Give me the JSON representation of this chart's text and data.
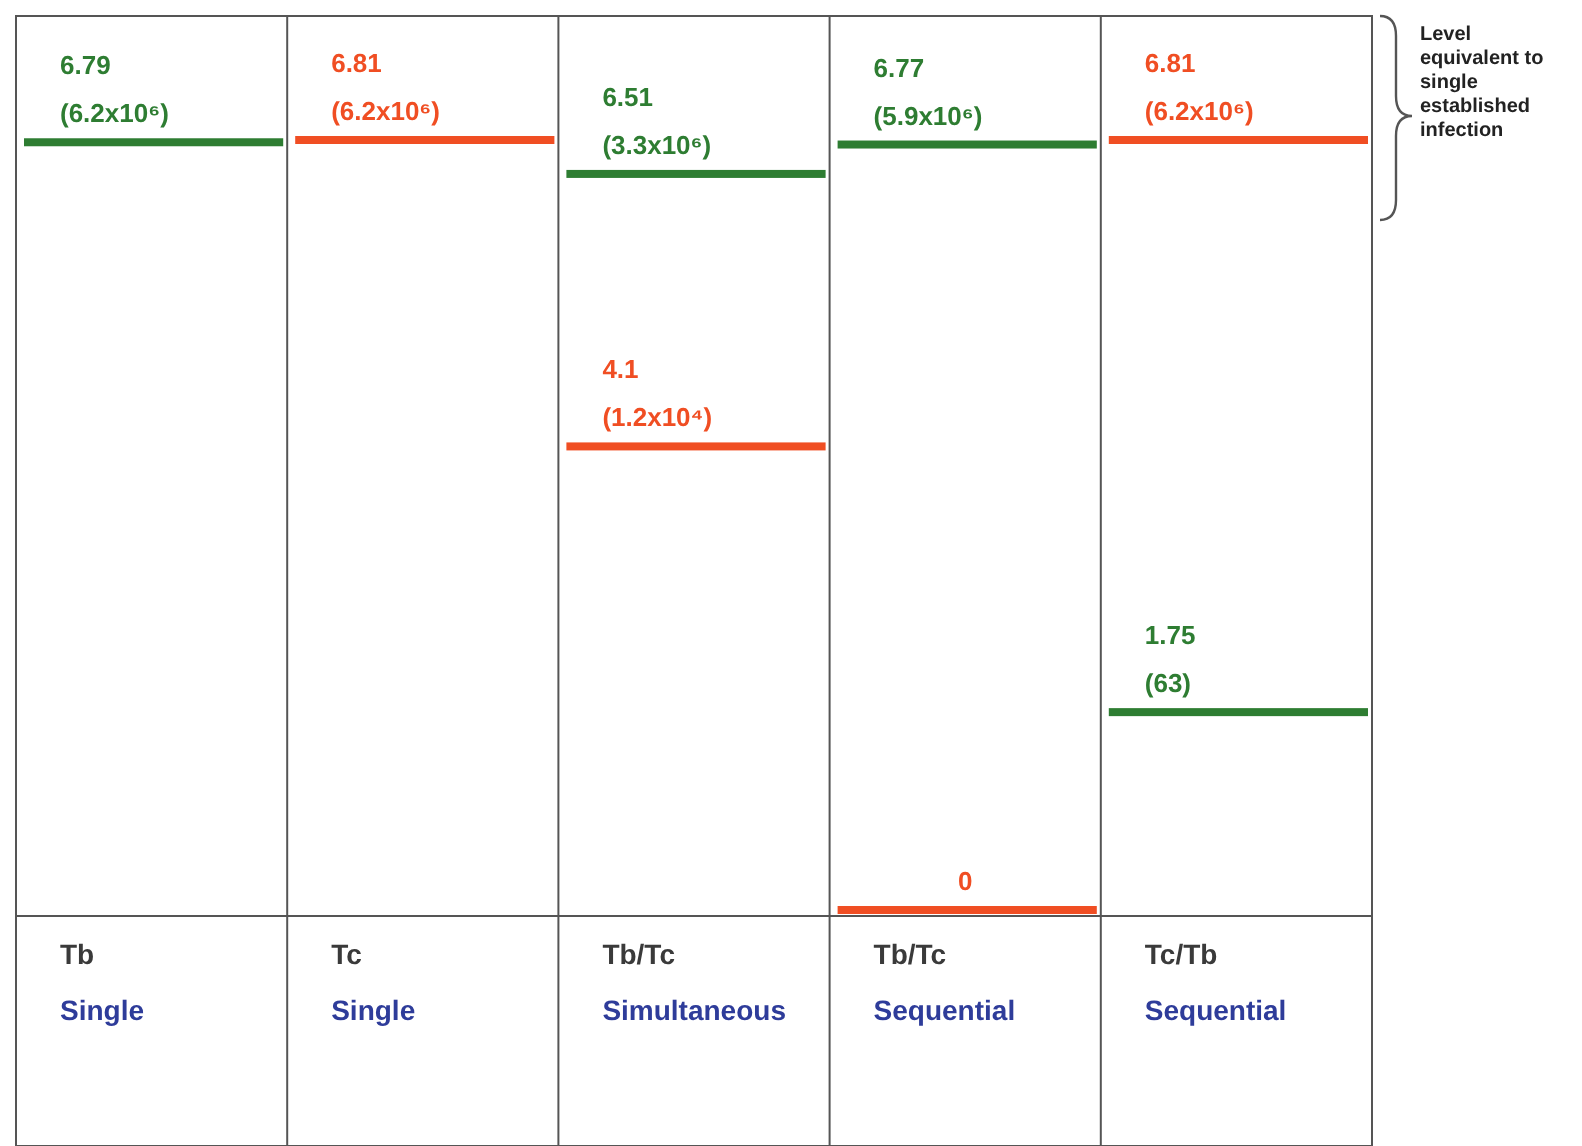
{
  "chart_data": {
    "type": "other",
    "categories": [
      "Tb\nSingle",
      "Tc\nSingle",
      "Tb/Tc\nSimultaneous",
      "Tb/Tc\nSequential",
      "Tc/Tb\nSequential"
    ],
    "series": [
      {
        "color": "#2e7d32",
        "values": [
          6.79,
          null,
          6.51,
          6.77,
          1.75
        ],
        "value_labels": [
          "6.79\n(6.2x10⁶)",
          null,
          "6.51\n(3.3x10⁶)",
          "6.77\n(5.9x10⁶)",
          "1.75\n(63)"
        ]
      },
      {
        "color": "#f04e23",
        "values": [
          null,
          6.81,
          4.1,
          0,
          6.81
        ],
        "value_labels": [
          null,
          "6.81\n(6.2x10⁶)",
          "4.1\n(1.2x10⁴)",
          "0",
          "6.81\n(6.2x10⁶)"
        ]
      }
    ],
    "annotations": [
      "Level\nequivalent to\nsingle\nestablished\ninfection"
    ]
  }
}
